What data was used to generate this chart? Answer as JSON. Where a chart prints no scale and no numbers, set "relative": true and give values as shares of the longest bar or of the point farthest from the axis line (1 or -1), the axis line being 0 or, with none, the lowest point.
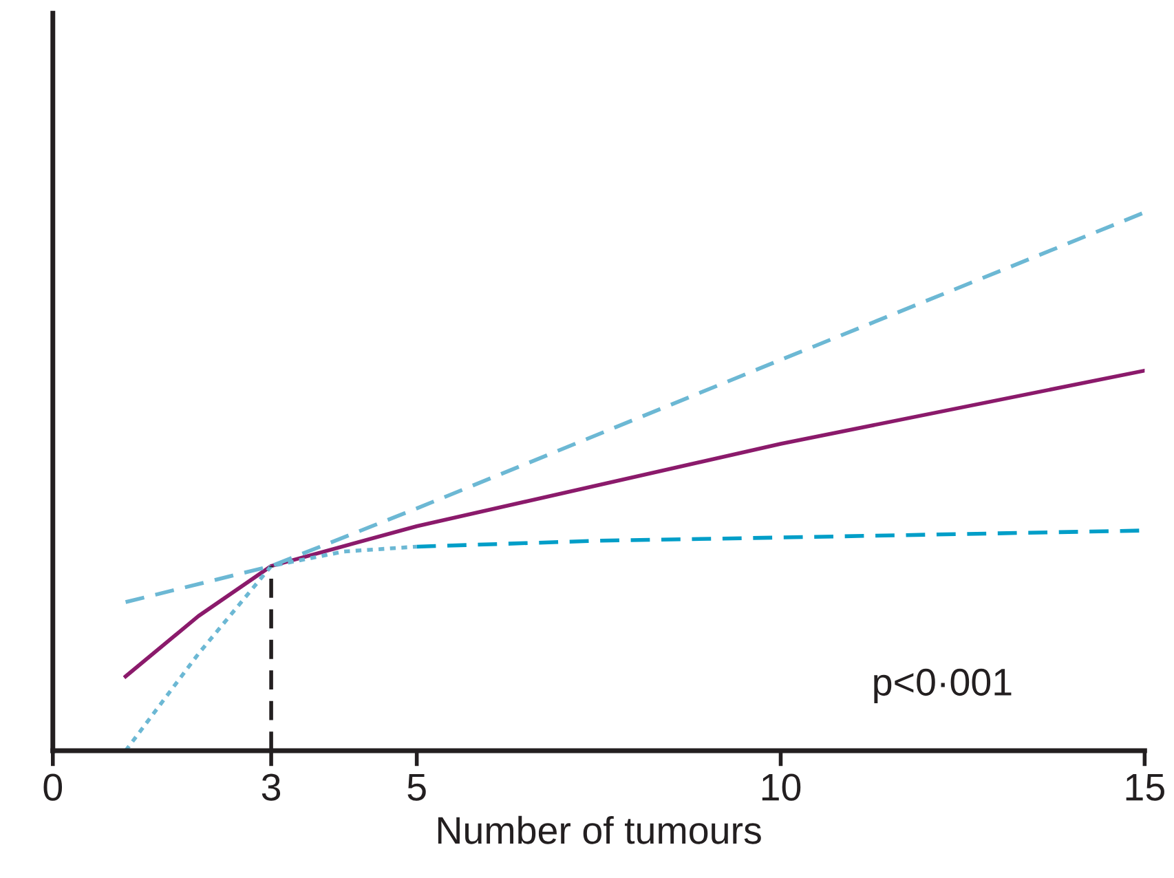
{
  "chart_data": {
    "type": "line",
    "relative": true,
    "xlabel": "Number of tumours",
    "xlim": [
      0,
      15
    ],
    "xticks": [
      0,
      3,
      5,
      10,
      15
    ],
    "grid": false,
    "marker": "none",
    "annotations": [
      "p<0·001"
    ],
    "series": [
      {
        "color": "#8b1a6b",
        "line_style": "solid",
        "x": [
          1,
          2,
          3,
          5,
          10,
          15
        ],
        "values": [
          0.138,
          0.25,
          0.343,
          0.417,
          0.57,
          0.706
        ]
      },
      {
        "color": "#6cb8d4",
        "line_style": "dashed",
        "x": [
          1,
          3,
          5,
          10,
          15
        ],
        "values": [
          0.276,
          0.343,
          0.45,
          0.726,
          1.0
        ]
      },
      {
        "color": "#6cb8d4",
        "line_style": "dotted",
        "x": [
          1,
          2,
          3,
          4,
          5
        ],
        "values": [
          0,
          0.18,
          0.343,
          0.37,
          0.379
        ]
      },
      {
        "color": "#009ec8",
        "line_style": "dashed",
        "x": [
          5,
          7.5,
          10,
          15
        ],
        "values": [
          0.379,
          0.39,
          0.396,
          0.409
        ]
      },
      {
        "color": "#231f20",
        "line_style": "dashed",
        "x": [
          3,
          3
        ],
        "values": [
          0,
          0.343
        ]
      }
    ]
  }
}
